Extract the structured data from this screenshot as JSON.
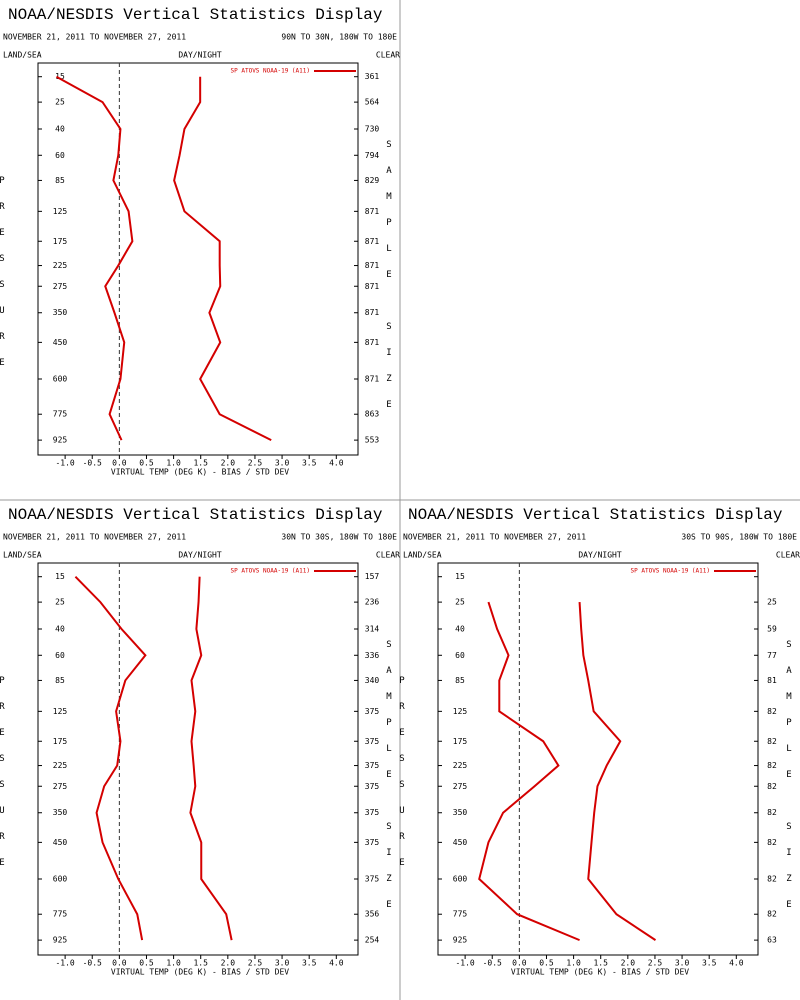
{
  "chart_data": [
    {
      "type": "line",
      "title": "NOAA/NESDIS Vertical Statistics Display",
      "subtitle": "NOVEMBER 21, 2011 TO NOVEMBER 27, 2011",
      "region": "90N TO 30N, 180W TO 180E",
      "land_sea": "LAND/SEA",
      "day_night": "DAY/NIGHT",
      "clear": "CLEAR",
      "xlabel": "VIRTUAL TEMP (DEG K) - BIAS / STD DEV",
      "ylabel": "PRESSURE",
      "y2label": "SAMPLE SIZE",
      "categories": [
        15,
        25,
        40,
        60,
        85,
        125,
        175,
        225,
        275,
        350,
        450,
        600,
        775,
        925
      ],
      "ylim": [
        11,
        1020
      ],
      "xlim": [
        -1.5,
        4.4
      ],
      "xticks": [
        {
          "value": -1,
          "label": "-1.0"
        },
        -0.5,
        {
          "value": 0,
          "label": "0.0"
        },
        0.5,
        {
          "value": 1,
          "label": "1.0"
        },
        1.5,
        {
          "value": 2,
          "label": "2.0"
        },
        2.5,
        {
          "value": 3,
          "label": "3.0"
        },
        3.5,
        {
          "value": 4,
          "label": "4.0"
        }
      ],
      "sample_size": [
        361,
        564,
        730,
        794,
        829,
        871,
        871,
        871,
        871,
        871,
        871,
        871,
        863,
        553
      ],
      "series": [
        {
          "name": "SP ATOVS NOAA-19 (A11)",
          "color": "#d40000",
          "bias": [
            -1.16,
            -0.31,
            0.02,
            -0.02,
            -0.11,
            0.17,
            0.24,
            -0.02,
            -0.26,
            -0.09,
            0.09,
            0.02,
            -0.18,
            0.04
          ],
          "std_dev": [
            1.49,
            1.49,
            1.2,
            1.11,
            1.01,
            1.2,
            1.85,
            1.85,
            1.86,
            1.66,
            1.86,
            1.49,
            1.85,
            2.8
          ]
        }
      ]
    },
    {
      "type": "line",
      "title": "NOAA/NESDIS Vertical Statistics Display",
      "subtitle": "NOVEMBER 21, 2011 TO NOVEMBER 27, 2011",
      "region": "30N TO 30S, 180W TO 180E",
      "land_sea": "LAND/SEA",
      "day_night": "DAY/NIGHT",
      "clear": "CLEAR",
      "xlabel": "VIRTUAL TEMP (DEG K) - BIAS / STD DEV",
      "ylabel": "PRESSURE",
      "y2label": "SAMPLE SIZE",
      "categories": [
        15,
        25,
        40,
        60,
        85,
        125,
        175,
        225,
        275,
        350,
        450,
        600,
        775,
        925
      ],
      "ylim": [
        11,
        1020
      ],
      "xlim": [
        -1.5,
        4.4
      ],
      "xticks": [
        {
          "value": -1,
          "label": "-1.0"
        },
        -0.5,
        {
          "value": 0,
          "label": "0.0"
        },
        0.5,
        {
          "value": 1,
          "label": "1.0"
        },
        1.5,
        {
          "value": 2,
          "label": "2.0"
        },
        2.5,
        {
          "value": 3,
          "label": "3.0"
        },
        3.5,
        {
          "value": 4,
          "label": "4.0"
        }
      ],
      "sample_size": [
        157,
        236,
        314,
        336,
        340,
        375,
        375,
        375,
        375,
        375,
        375,
        375,
        356,
        254
      ],
      "series": [
        {
          "name": "SP ATOVS NOAA-19 (A11)",
          "color": "#d40000",
          "bias": [
            -0.81,
            -0.35,
            0.04,
            0.48,
            0.11,
            -0.06,
            0.02,
            -0.04,
            -0.28,
            -0.42,
            -0.31,
            -0.02,
            0.33,
            0.42
          ],
          "std_dev": [
            1.48,
            1.46,
            1.42,
            1.51,
            1.33,
            1.4,
            1.33,
            1.37,
            1.4,
            1.31,
            1.51,
            1.51,
            1.97,
            2.07
          ]
        }
      ]
    },
    {
      "type": "line",
      "title": "NOAA/NESDIS Vertical Statistics Display",
      "subtitle": "NOVEMBER 21, 2011 TO NOVEMBER 27, 2011",
      "region": "30S TO 90S, 180W TO 180E",
      "land_sea": "LAND/SEA",
      "day_night": "DAY/NIGHT",
      "clear": "CLEAR",
      "xlabel": "VIRTUAL TEMP (DEG K) - BIAS / STD DEV",
      "ylabel": "PRESSURE",
      "y2label": "SAMPLE SIZE",
      "categories": [
        15,
        25,
        40,
        60,
        85,
        125,
        175,
        225,
        275,
        350,
        450,
        600,
        775,
        925
      ],
      "ylim": [
        11,
        1020
      ],
      "xlim": [
        -1.5,
        4.4
      ],
      "xticks": [
        {
          "value": -1,
          "label": "-1.0"
        },
        -0.5,
        {
          "value": 0,
          "label": "0.0"
        },
        0.5,
        {
          "value": 1,
          "label": "1.0"
        },
        1.5,
        {
          "value": 2,
          "label": "2.0"
        },
        2.5,
        {
          "value": 3,
          "label": "3.0"
        },
        3.5,
        {
          "value": 4,
          "label": "4.0"
        }
      ],
      "sample_size": [
        null,
        25,
        59,
        77,
        81,
        82,
        82,
        82,
        82,
        82,
        82,
        82,
        82,
        63
      ],
      "series": [
        {
          "name": "SP ATOVS NOAA-19 (A11)",
          "color": "#d40000",
          "bias": [
            null,
            -0.57,
            -0.41,
            -0.2,
            -0.37,
            -0.37,
            0.44,
            0.72,
            0.28,
            -0.3,
            -0.57,
            -0.74,
            -0.04,
            1.11
          ],
          "std_dev": [
            null,
            1.11,
            1.14,
            1.18,
            1.27,
            1.37,
            1.86,
            1.61,
            1.44,
            1.38,
            1.33,
            1.27,
            1.79,
            2.51
          ]
        }
      ]
    }
  ]
}
